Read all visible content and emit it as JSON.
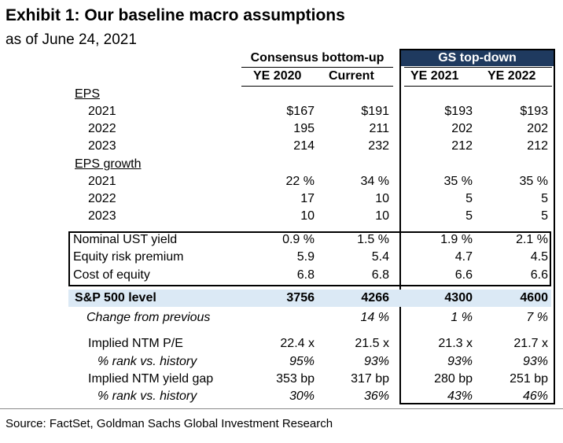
{
  "title": "Exhibit 1: Our baseline macro assumptions",
  "subtitle": "as of June 24, 2021",
  "headers": {
    "consensus": "Consensus bottom-up",
    "gs": "GS top-down",
    "cols": [
      "YE 2020",
      "Current",
      "YE 2021",
      "YE 2022"
    ]
  },
  "rows": [
    {
      "label": "EPS",
      "style": "section",
      "values": [
        "",
        "",
        "",
        ""
      ]
    },
    {
      "label": "2021",
      "style": "indent",
      "values": [
        "$167",
        "$191",
        "$193",
        "$193"
      ]
    },
    {
      "label": "2022",
      "style": "indent",
      "values": [
        "195",
        "211",
        "202",
        "202"
      ]
    },
    {
      "label": "2023",
      "style": "indent",
      "values": [
        "214",
        "232",
        "212",
        "212"
      ]
    },
    {
      "label": "EPS growth",
      "style": "section",
      "values": [
        "",
        "",
        "",
        ""
      ]
    },
    {
      "label": "2021",
      "style": "indent",
      "values": [
        "22 %",
        "34 %",
        "35 %",
        "35 %"
      ]
    },
    {
      "label": "2022",
      "style": "indent",
      "values": [
        "17",
        "10",
        "5",
        "5"
      ]
    },
    {
      "label": "2023",
      "style": "indent",
      "values": [
        "10",
        "10",
        "5",
        "5"
      ]
    },
    {
      "label": "Nominal UST yield",
      "style": "rate",
      "values": [
        "0.9 %",
        "1.5 %",
        "1.9 %",
        "2.1 %"
      ]
    },
    {
      "label": "Equity risk premium",
      "style": "rate",
      "values": [
        "5.9",
        "5.4",
        "4.7",
        "4.5"
      ]
    },
    {
      "label": "Cost of equity",
      "style": "rate",
      "values": [
        "6.8",
        "6.8",
        "6.6",
        "6.6"
      ]
    },
    {
      "label": "S&P 500 level",
      "style": "highlight",
      "values": [
        "3756",
        "4266",
        "4300",
        "4600"
      ]
    },
    {
      "label": "Change from previous",
      "style": "italic",
      "values": [
        "",
        "14 %",
        "1 %",
        "7 %"
      ]
    },
    {
      "label": "Implied NTM P/E",
      "style": "indent",
      "values": [
        "22.4 x",
        "21.5 x",
        "21.3 x",
        "21.7 x"
      ]
    },
    {
      "label": "% rank vs. history",
      "style": "italic-sub",
      "values": [
        "95%",
        "93%",
        "93%",
        "93%"
      ]
    },
    {
      "label": "Implied NTM yield gap",
      "style": "indent",
      "values": [
        "353 bp",
        "317 bp",
        "280 bp",
        "251 bp"
      ]
    },
    {
      "label": "% rank vs. history",
      "style": "italic-sub",
      "values": [
        "30%",
        "36%",
        "43%",
        "46%"
      ]
    }
  ],
  "source": "Source: FactSet, Goldman Sachs Global Investment Research",
  "colors": {
    "gs_header_bg": "#1f3a5f",
    "highlight_bg": "#dbe9f5"
  }
}
